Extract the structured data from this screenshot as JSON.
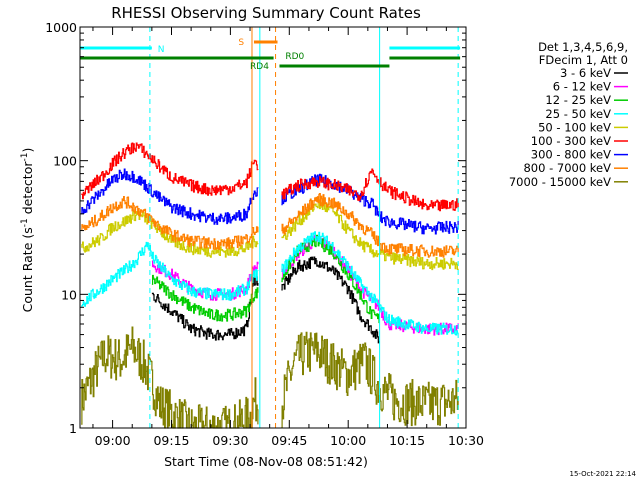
{
  "chart_data": {
    "type": "line",
    "title": "RHESSI Observing Summary Count Rates",
    "xlabel": "Start Time (08-Nov-08 08:51:42)",
    "ylabel": "Count Rate (s",
    "ylabel_sup1": "-1",
    "ylabel_mid": " detector",
    "ylabel_sup2": "-1",
    "ylabel_end": ")",
    "yscale": "log",
    "ylim": [
      1,
      1000
    ],
    "xlim": [
      "08:51:42",
      "10:30:00"
    ],
    "x_ticks": [
      "09:00",
      "09:15",
      "09:30",
      "09:45",
      "10:00",
      "10:15",
      "10:30"
    ],
    "y_ticks": [
      "1",
      "10",
      "100",
      "1000"
    ],
    "timestamp": "15-Oct-2021 22:14",
    "legend_header": [
      "Det 1,3,4,5,6,9,",
      "FDecim 1, Att 0"
    ],
    "legend": [
      {
        "name": "3 - 6 keV",
        "color": "#000000"
      },
      {
        "name": "6 - 12 keV",
        "color": "#ff00ff"
      },
      {
        "name": "12 - 25 keV",
        "color": "#00cc00"
      },
      {
        "name": "25 - 50 keV",
        "color": "#00ffff"
      },
      {
        "name": "50 - 100 keV",
        "color": "#cccc00"
      },
      {
        "name": "100 - 300 keV",
        "color": "#ff0000"
      },
      {
        "name": "300 - 800 keV",
        "color": "#0000ff"
      },
      {
        "name": "800 - 7000 keV",
        "color": "#ff8000"
      },
      {
        "name": "7000 - 15000 keV",
        "color": "#808000"
      }
    ],
    "flags": [
      {
        "label": "N",
        "color": "#00ffff",
        "segments": [
          [
            "08:51:42",
            "09:10:00"
          ],
          [
            "10:10:30",
            "10:28:30"
          ]
        ]
      },
      {
        "label": "S",
        "color": "#ff8000",
        "segments": [
          [
            "09:36:00",
            "09:42:00"
          ]
        ]
      },
      {
        "label": "RD4",
        "color": "#008000",
        "segments": [
          [
            "08:51:42",
            "09:41:00"
          ]
        ]
      },
      {
        "label": "RD0",
        "color": "#008000",
        "segments": [
          [
            "09:42:30",
            "10:10:30"
          ]
        ]
      }
    ],
    "markers": [
      {
        "time": "09:09:30",
        "color": "#00ffff",
        "style": "dashed"
      },
      {
        "time": "09:35:30",
        "color": "#ff8000",
        "style": "solid"
      },
      {
        "time": "09:37:30",
        "color": "#00ffff",
        "style": "solid"
      },
      {
        "time": "09:41:30",
        "color": "#ff8000",
        "style": "dashed"
      },
      {
        "time": "10:08:00",
        "color": "#00ffff",
        "style": "solid"
      },
      {
        "time": "10:28:00",
        "color": "#00ffff",
        "style": "dashed"
      }
    ],
    "segments": [
      {
        "start": "08:51:42",
        "end": "09:37:00"
      },
      {
        "start": "09:43:00",
        "end": "10:08:00"
      },
      {
        "start": "10:08:00",
        "end": "10:28:00"
      }
    ],
    "series": [
      {
        "name": "3 - 6 keV",
        "color": "#000000",
        "x": [
          "09:10",
          "09:15",
          "09:20",
          "09:25",
          "09:30",
          "09:34",
          "09:36",
          "09:43",
          "09:47",
          "09:52",
          "09:56",
          "10:00",
          "10:03",
          "10:06",
          "10:08"
        ],
        "values": [
          10,
          7.5,
          5.5,
          5,
          5,
          5.5,
          13,
          11,
          16,
          18,
          15,
          11,
          7,
          5.5,
          4.5
        ]
      },
      {
        "name": "6 - 12 keV",
        "color": "#ff00ff",
        "x": [
          "09:10",
          "09:15",
          "09:20",
          "09:25",
          "09:30",
          "09:34",
          "09:36",
          "09:43",
          "09:47",
          "09:52",
          "09:56",
          "10:00",
          "10:03",
          "10:06",
          "10:08",
          "10:10",
          "10:20",
          "10:28"
        ],
        "values": [
          17,
          14,
          11,
          10,
          10,
          11,
          16,
          14,
          20,
          26,
          22,
          15,
          11,
          9,
          8,
          6,
          5.5,
          5.5
        ]
      },
      {
        "name": "12 - 25 keV",
        "color": "#00cc00",
        "x": [
          "09:10",
          "09:15",
          "09:20",
          "09:25",
          "09:30",
          "09:34",
          "09:36",
          "09:43",
          "09:47",
          "09:52",
          "09:56",
          "10:00",
          "10:03",
          "10:06",
          "10:08"
        ],
        "values": [
          13,
          10,
          8,
          7,
          7,
          7.5,
          10,
          13,
          21,
          25,
          21,
          14,
          10,
          7,
          6.5
        ]
      },
      {
        "name": "25 - 50 keV",
        "color": "#00ffff",
        "x": [
          "08:52",
          "08:57",
          "09:00",
          "09:03",
          "09:06",
          "09:09",
          "09:10",
          "09:15",
          "09:20",
          "09:25",
          "09:30",
          "09:34",
          "09:36",
          "09:43",
          "09:47",
          "09:52",
          "09:56",
          "10:00",
          "10:03",
          "10:06",
          "10:08",
          "10:10",
          "10:20",
          "10:28"
        ],
        "values": [
          8.5,
          11,
          13,
          15,
          18,
          24,
          19,
          13,
          10.5,
          10,
          10,
          11,
          14,
          15,
          22,
          28,
          23,
          16,
          12,
          9.5,
          8,
          6.5,
          5.5,
          5.5
        ]
      },
      {
        "name": "50 - 100 keV",
        "color": "#cccc00",
        "x": [
          "08:52",
          "08:57",
          "09:00",
          "09:03",
          "09:06",
          "09:09",
          "09:12",
          "09:15",
          "09:20",
          "09:25",
          "09:30",
          "09:34",
          "09:36",
          "09:43",
          "09:47",
          "09:52",
          "09:56",
          "10:00",
          "10:03",
          "10:06",
          "10:08",
          "10:10",
          "10:20",
          "10:28"
        ],
        "values": [
          22,
          26,
          32,
          35,
          40,
          36,
          30,
          25,
          22,
          21,
          21,
          22,
          25,
          26,
          34,
          48,
          42,
          30,
          24,
          21,
          20,
          19,
          17,
          17
        ]
      },
      {
        "name": "100 - 300 keV",
        "color": "#ff0000",
        "x": [
          "08:52",
          "08:57",
          "09:00",
          "09:03",
          "09:06",
          "09:09",
          "09:12",
          "09:15",
          "09:20",
          "09:25",
          "09:30",
          "09:34",
          "09:36",
          "09:43",
          "09:47",
          "09:52",
          "09:56",
          "10:00",
          "10:03",
          "10:06",
          "10:08",
          "10:10",
          "10:20",
          "10:28"
        ],
        "values": [
          55,
          75,
          95,
          115,
          130,
          110,
          90,
          75,
          65,
          60,
          62,
          68,
          100,
          55,
          65,
          70,
          66,
          60,
          55,
          85,
          70,
          60,
          45,
          47
        ]
      },
      {
        "name": "300 - 800 keV",
        "color": "#0000ff",
        "x": [
          "08:52",
          "08:57",
          "09:00",
          "09:03",
          "09:06",
          "09:09",
          "09:12",
          "09:15",
          "09:20",
          "09:25",
          "09:30",
          "09:34",
          "09:36",
          "09:43",
          "09:47",
          "09:52",
          "09:56",
          "10:00",
          "10:03",
          "10:06",
          "10:08",
          "10:10",
          "10:20",
          "10:28"
        ],
        "values": [
          42,
          58,
          72,
          80,
          75,
          63,
          52,
          45,
          40,
          37,
          37,
          40,
          60,
          52,
          60,
          72,
          68,
          60,
          52,
          48,
          38,
          35,
          31,
          32
        ]
      },
      {
        "name": "800 - 7000 keV",
        "color": "#ff8000",
        "x": [
          "08:52",
          "08:57",
          "09:00",
          "09:03",
          "09:06",
          "09:09",
          "09:12",
          "09:15",
          "09:20",
          "09:25",
          "09:30",
          "09:34",
          "09:36",
          "09:43",
          "09:47",
          "09:52",
          "09:56",
          "10:00",
          "10:03",
          "10:06",
          "10:08",
          "10:10",
          "10:20",
          "10:28"
        ],
        "values": [
          30,
          38,
          45,
          50,
          44,
          38,
          32,
          28,
          25,
          24,
          24,
          26,
          30,
          30,
          38,
          52,
          48,
          40,
          33,
          28,
          24,
          22,
          21,
          21
        ]
      },
      {
        "name": "7000 - 15000 keV",
        "color": "#808000",
        "x": [
          "08:52",
          "08:56",
          "08:58",
          "09:02",
          "09:05",
          "09:08",
          "09:10",
          "09:12",
          "09:20",
          "09:30",
          "09:35",
          "09:36",
          "09:43",
          "09:46",
          "09:48",
          "09:52",
          "09:56",
          "10:00",
          "10:04",
          "10:06",
          "10:08",
          "10:12",
          "10:20",
          "10:28"
        ],
        "values": [
          1.6,
          2.8,
          3.5,
          3.2,
          4,
          3,
          2.2,
          1.5,
          1,
          1,
          1.2,
          1.6,
          1.5,
          3,
          3.5,
          3.8,
          3,
          2.5,
          3.2,
          2.5,
          2,
          1.6,
          1.5,
          1.6
        ]
      }
    ]
  }
}
